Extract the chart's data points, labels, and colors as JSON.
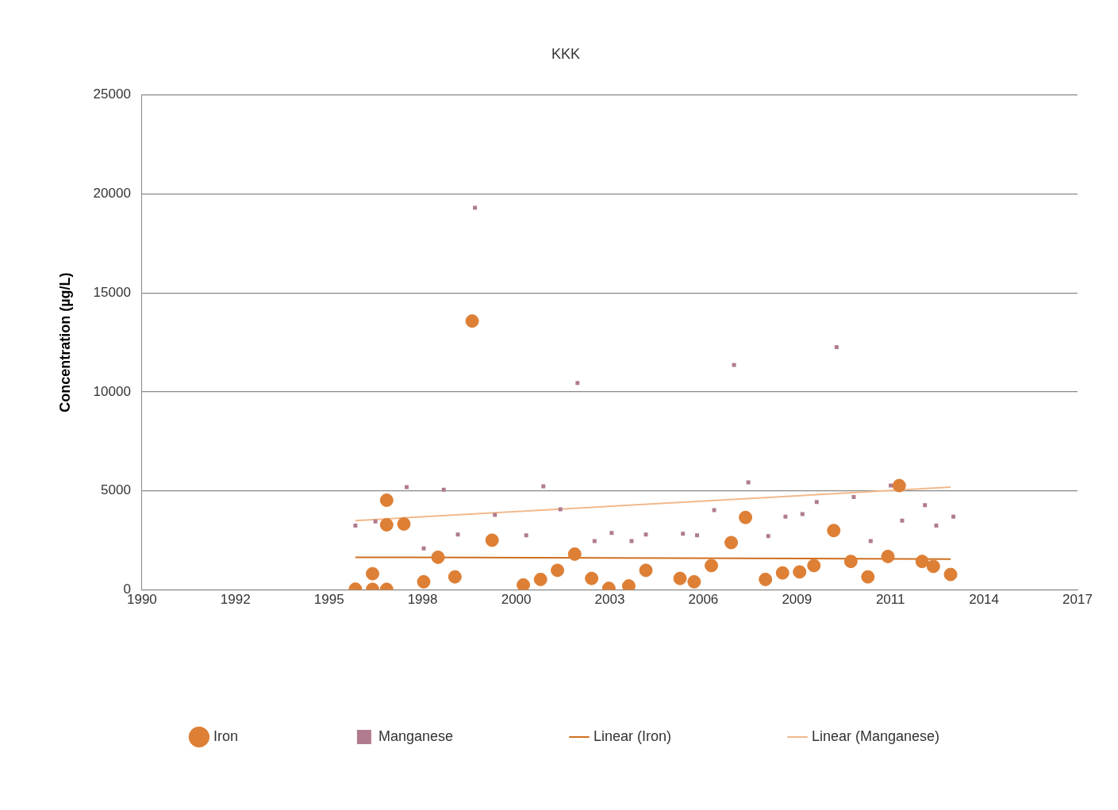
{
  "chart_data": {
    "type": "scatter",
    "title": "KKK",
    "ylabel": "Concentration (µg/L)",
    "xlim": [
      "1990-01-01",
      "2017-05-20"
    ],
    "xticks": [
      {
        "value": "1990-01-01",
        "label": "1990"
      },
      {
        "value": "1992-09-27",
        "label": "1992"
      },
      {
        "value": "1995-06-24",
        "label": "1995"
      },
      {
        "value": "1998-03-20",
        "label": "1998"
      },
      {
        "value": "2000-12-15",
        "label": "2000"
      },
      {
        "value": "2003-09-11",
        "label": "2003"
      },
      {
        "value": "2006-06-07",
        "label": "2006"
      },
      {
        "value": "2009-03-03",
        "label": "2009"
      },
      {
        "value": "2011-11-28",
        "label": "2011"
      },
      {
        "value": "2014-08-24",
        "label": "2014"
      },
      {
        "value": "2017-05-20",
        "label": "2017"
      }
    ],
    "ylim": [
      0,
      25000
    ],
    "yticks": [
      0,
      5000,
      10000,
      15000,
      20000,
      25000
    ],
    "grid": "y",
    "legend": "bottom",
    "series": [
      {
        "name": "Iron",
        "type": "scatter",
        "marker": "circle",
        "color": "#dd7f35",
        "x": [
          "1996-04",
          "1996-10",
          "1996-10",
          "1997-03",
          "1997-03",
          "1997-03",
          "1997-09",
          "1998-04",
          "1998-09",
          "1999-03",
          "1999-09",
          "2000-04",
          "2001-03",
          "2001-09",
          "2002-03",
          "2002-09",
          "2003-03",
          "2003-09",
          "2004-04",
          "2004-10",
          "2005-10",
          "2006-03",
          "2006-09",
          "2007-04",
          "2007-09",
          "2008-04",
          "2008-10",
          "2009-04",
          "2009-09",
          "2010-04",
          "2010-10",
          "2011-04",
          "2011-11",
          "2012-03",
          "2012-11",
          "2013-03",
          "2013-09"
        ],
        "values": [
          40,
          820,
          30,
          4530,
          3290,
          30,
          3330,
          410,
          1650,
          660,
          13580,
          2510,
          250,
          530,
          990,
          1810,
          580,
          80,
          200,
          990,
          580,
          410,
          1230,
          2390,
          3660,
          530,
          860,
          910,
          1230,
          3000,
          1440,
          660,
          1690,
          5270,
          1440,
          1190,
          780
        ]
      },
      {
        "name": "Manganese",
        "type": "scatter",
        "marker": "square",
        "color": "#b07b8e",
        "x": [
          "1996-04",
          "1996-11",
          "1997-10",
          "1998-04",
          "1998-11",
          "1999-04",
          "1999-10",
          "2000-05",
          "2001-04",
          "2001-10",
          "2002-04",
          "2002-10",
          "2003-04",
          "2003-10",
          "2004-05",
          "2004-10",
          "2005-11",
          "2006-04",
          "2006-10",
          "2007-05",
          "2007-10",
          "2008-05",
          "2008-11",
          "2009-05",
          "2009-10",
          "2010-05",
          "2010-11",
          "2011-05",
          "2011-12",
          "2012-04",
          "2012-12",
          "2013-04",
          "2013-10"
        ],
        "values": [
          3250,
          3460,
          5190,
          2100,
          5060,
          2800,
          19300,
          3790,
          2760,
          5230,
          4070,
          10450,
          2470,
          2880,
          2470,
          2800,
          2840,
          2760,
          4030,
          11360,
          5430,
          2720,
          3700,
          3830,
          4440,
          12260,
          4690,
          2470,
          5270,
          3500,
          4280,
          3250,
          3700
        ]
      },
      {
        "name": "Linear (Iron)",
        "type": "line",
        "marker": "none",
        "color": "#cf6f1f",
        "x": [
          "1996-04",
          "2013-09"
        ],
        "values": [
          1650,
          1560
        ]
      },
      {
        "name": "Linear (Manganese)",
        "type": "line",
        "marker": "none",
        "color": "#f2b98c",
        "x": [
          "1996-04",
          "2013-09"
        ],
        "values": [
          3500,
          5190
        ]
      }
    ]
  }
}
